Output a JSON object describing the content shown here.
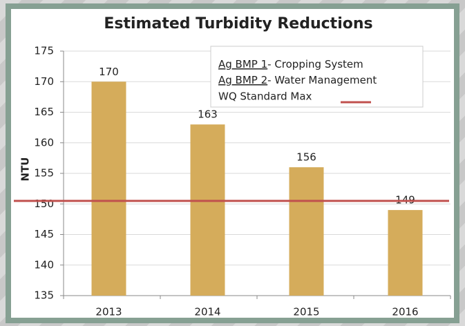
{
  "chart_data": {
    "type": "bar",
    "title": "Estimated Turbidity Reductions",
    "y_label": "NTU",
    "categories": [
      "2013",
      "2014",
      "2015",
      "2016"
    ],
    "values": [
      170,
      163,
      156,
      149
    ],
    "color": "#d5ac5b",
    "ylim": [
      135,
      175
    ],
    "yticks": [
      135,
      140,
      145,
      150,
      155,
      160,
      165,
      170,
      175
    ],
    "grid": true,
    "reference_line": {
      "name": "WQ Standard Max",
      "value": 150.5,
      "color": "#c0504d"
    },
    "legend_notes": [
      {
        "key": "Ag BMP 1",
        "text": "-  Cropping System"
      },
      {
        "key": "Ag BMP 2",
        "text": "-  Water Management"
      }
    ]
  }
}
